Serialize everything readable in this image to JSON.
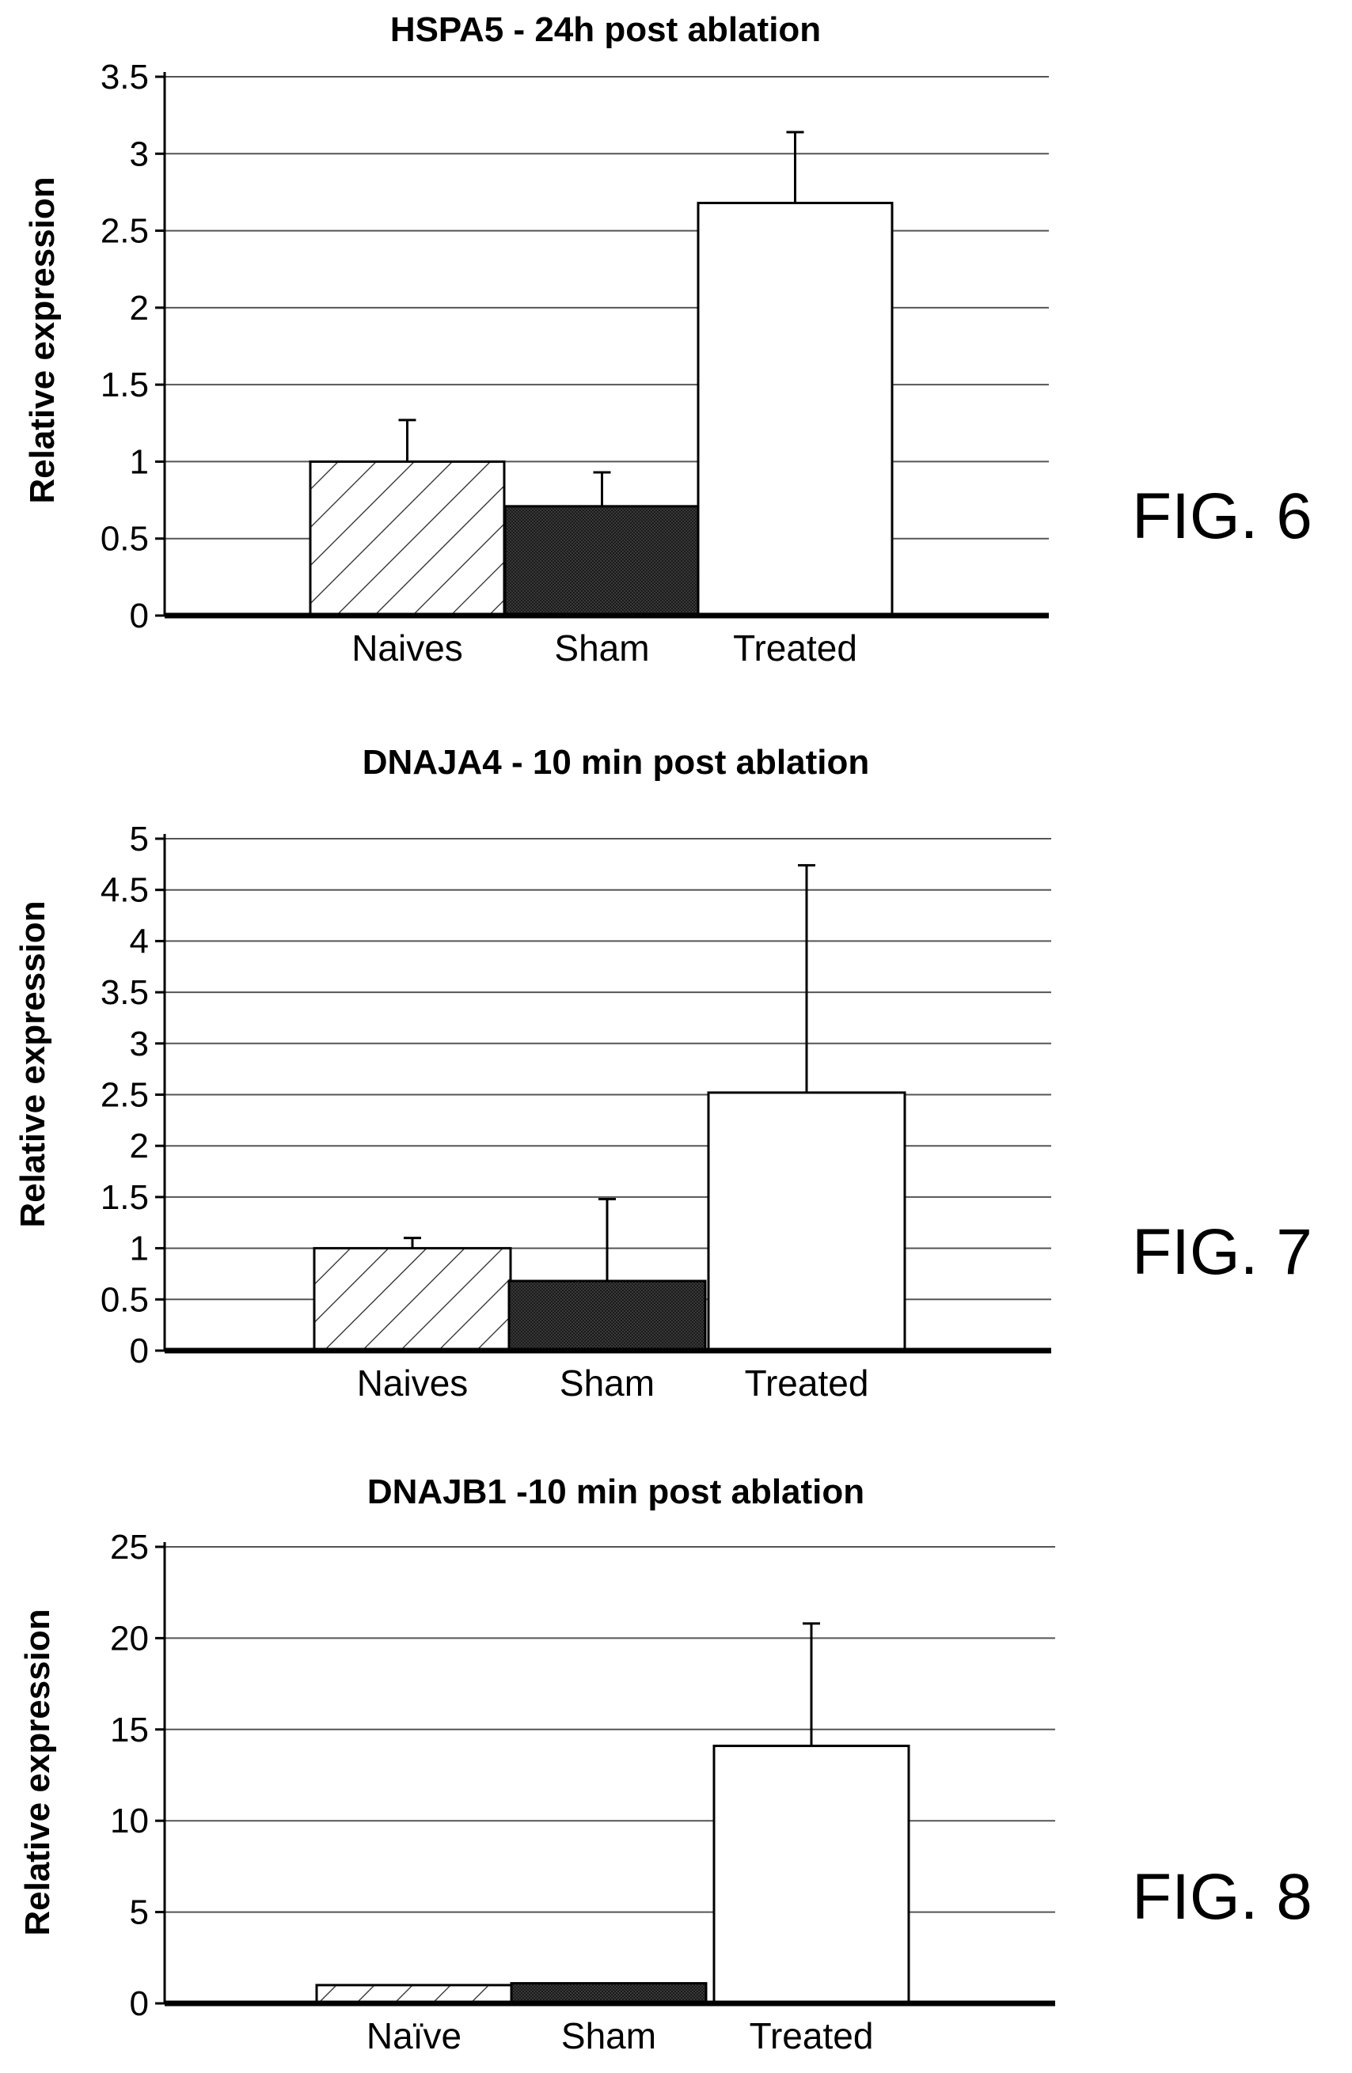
{
  "figures": [
    {
      "label": "FIG. 6",
      "chart": {
        "type": "bar",
        "title": "HSPA5 - 24h post ablation",
        "ylabel": "Relative expression",
        "xlabel": "",
        "categories": [
          "Naives",
          "Sham",
          "Treated"
        ],
        "values": [
          1.0,
          0.71,
          2.68
        ],
        "error_upper": [
          0.27,
          0.22,
          0.46
        ],
        "ylim": [
          0,
          3.5
        ],
        "yticks": [
          "0",
          "0.5",
          "1",
          "1.5",
          "2",
          "2.5",
          "3",
          "3.5"
        ],
        "grid": true,
        "bar_fills": [
          "hatch",
          "dark",
          "white"
        ]
      }
    },
    {
      "label": "FIG. 7",
      "chart": {
        "type": "bar",
        "title": "DNAJA4 - 10 min post ablation",
        "ylabel": "Relative expression",
        "xlabel": "",
        "categories": [
          "Naives",
          "Sham",
          "Treated"
        ],
        "values": [
          1.0,
          0.68,
          2.52
        ],
        "error_upper": [
          0.1,
          0.8,
          2.22
        ],
        "ylim": [
          0,
          5
        ],
        "yticks": [
          "0",
          "0.5",
          "1",
          "1.5",
          "2",
          "2.5",
          "3",
          "3.5",
          "4",
          "4.5",
          "5"
        ],
        "grid": true,
        "bar_fills": [
          "hatch",
          "dark",
          "white"
        ]
      }
    },
    {
      "label": "FIG. 8",
      "chart": {
        "type": "bar",
        "title": "DNAJB1 -10 min post ablation",
        "ylabel": "Relative expression",
        "xlabel": "",
        "categories": [
          "Naïve",
          "Sham",
          "Treated"
        ],
        "values": [
          1.0,
          1.1,
          14.1
        ],
        "error_upper": [
          0,
          0,
          6.7
        ],
        "ylim": [
          0,
          25
        ],
        "yticks": [
          "0",
          "5",
          "10",
          "15",
          "20",
          "25"
        ],
        "grid": true,
        "bar_fills": [
          "hatch",
          "dark",
          "white"
        ]
      }
    }
  ],
  "chart_data": [
    {
      "type": "bar",
      "title": "HSPA5 - 24h post ablation",
      "ylabel": "Relative expression",
      "categories": [
        "Naives",
        "Sham",
        "Treated"
      ],
      "values": [
        1.0,
        0.71,
        2.68
      ],
      "error_upper": [
        0.27,
        0.22,
        0.46
      ],
      "ylim": [
        0,
        3.5
      ],
      "grid": true
    },
    {
      "type": "bar",
      "title": "DNAJA4 - 10 min post ablation",
      "ylabel": "Relative expression",
      "categories": [
        "Naives",
        "Sham",
        "Treated"
      ],
      "values": [
        1.0,
        0.68,
        2.52
      ],
      "error_upper": [
        0.1,
        0.8,
        2.22
      ],
      "ylim": [
        0,
        5
      ],
      "grid": true
    },
    {
      "type": "bar",
      "title": "DNAJB1 -10 min post ablation",
      "ylabel": "Relative expression",
      "categories": [
        "Naïve",
        "Sham",
        "Treated"
      ],
      "values": [
        1.0,
        1.1,
        14.1
      ],
      "error_upper": [
        0,
        0,
        6.7
      ],
      "ylim": [
        0,
        25
      ],
      "grid": true
    }
  ]
}
